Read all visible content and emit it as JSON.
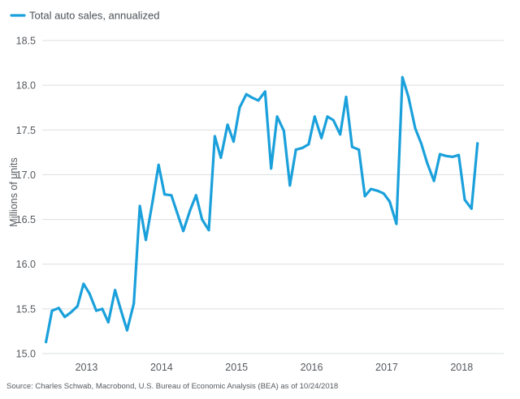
{
  "chart_data": {
    "type": "line",
    "ylabel": "Millions of units",
    "ylim": [
      15.0,
      18.5
    ],
    "yticks": [
      15.0,
      15.5,
      16.0,
      16.5,
      17.0,
      17.5,
      18.0,
      18.5
    ],
    "xlim": [
      2012.45,
      2018.6
    ],
    "xticks": [
      2013,
      2014,
      2015,
      2016,
      2017,
      2018
    ],
    "xtick_labels": [
      "2013",
      "2014",
      "2015",
      "2016",
      "2017",
      "2018"
    ],
    "grid": true,
    "legend_position": "top-left",
    "series": [
      {
        "name": "Total auto sales, annualized",
        "color": "#1aa0db",
        "x": [
          2012.5,
          2012.58,
          2012.67,
          2012.75,
          2012.83,
          2012.92,
          2013.0,
          2013.08,
          2013.17,
          2013.25,
          2013.33,
          2013.42,
          2013.5,
          2013.58,
          2013.67,
          2013.75,
          2013.83,
          2013.92,
          2014.0,
          2014.08,
          2014.17,
          2014.25,
          2014.33,
          2014.42,
          2014.5,
          2014.58,
          2014.67,
          2014.75,
          2014.83,
          2014.92,
          2015.0,
          2015.08,
          2015.17,
          2015.25,
          2015.33,
          2015.42,
          2015.5,
          2015.58,
          2015.67,
          2015.75,
          2015.83,
          2015.92,
          2016.0,
          2016.08,
          2016.17,
          2016.25,
          2016.33,
          2016.42,
          2016.5,
          2016.58,
          2016.67,
          2016.75,
          2016.83,
          2016.92,
          2017.0,
          2017.08,
          2017.17,
          2017.25,
          2017.33,
          2017.42,
          2017.5,
          2017.58,
          2017.67,
          2017.75,
          2017.83,
          2017.92,
          2018.0,
          2018.08,
          2018.17,
          2018.25
        ],
        "y": [
          15.13,
          15.48,
          15.51,
          15.41,
          15.46,
          15.53,
          15.78,
          15.67,
          15.48,
          15.5,
          15.35,
          15.71,
          15.48,
          15.26,
          15.56,
          16.65,
          16.27,
          16.7,
          17.11,
          16.78,
          16.77,
          16.57,
          16.37,
          16.6,
          16.77,
          16.5,
          16.38,
          17.43,
          17.19,
          17.56,
          17.37,
          17.75,
          17.9,
          17.86,
          17.83,
          17.93,
          17.07,
          17.65,
          17.49,
          16.88,
          17.28,
          17.3,
          17.34,
          17.65,
          17.41,
          17.65,
          17.61,
          17.45,
          17.87,
          17.31,
          17.28,
          16.76,
          16.84,
          16.82,
          16.79,
          16.7,
          16.45,
          18.09,
          17.87,
          17.52,
          17.35,
          17.13,
          16.93,
          17.23,
          17.21,
          17.2,
          17.22,
          16.72,
          16.62,
          17.35
        ]
      }
    ],
    "source": "Source: Charles Schwab, Macrobond, U.S. Bureau of Economic Analysis (BEA) as of 10/24/2018"
  }
}
